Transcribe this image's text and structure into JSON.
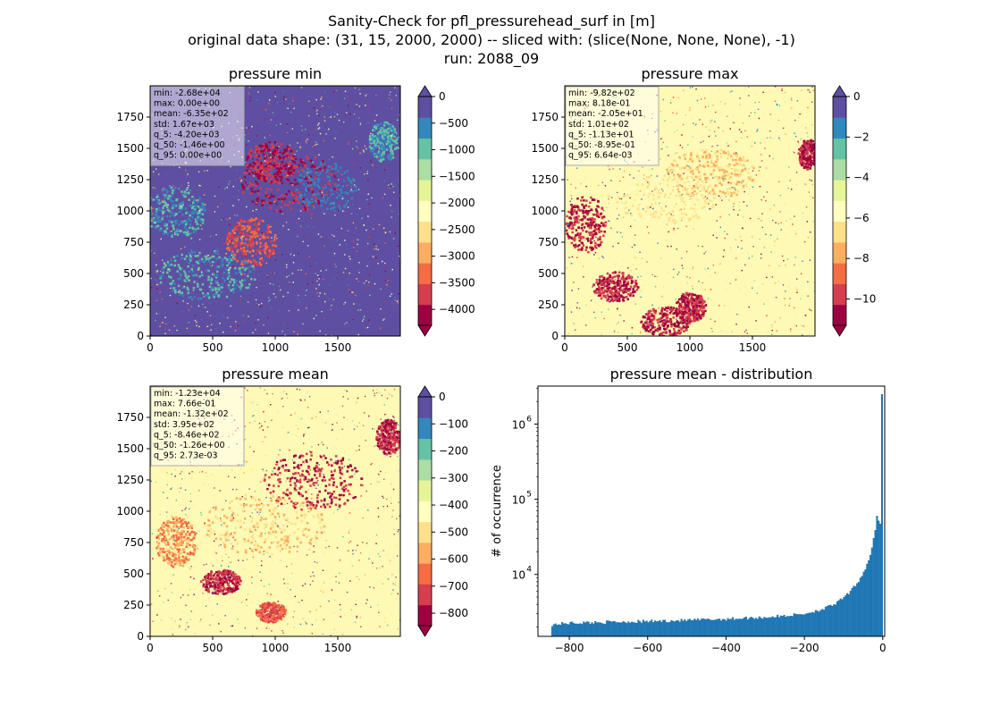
{
  "figure": {
    "title_line1": "Sanity-Check for pfl_pressurehead_surf in [m]",
    "title_line2": "original data shape: (31, 15, 2000, 2000) -- sliced with: (slice(None, None, None), -1)",
    "title_line3": "run: 2088_09"
  },
  "colors": {
    "spectral": [
      "#9e0142",
      "#d53e4f",
      "#f46d43",
      "#fdae61",
      "#fee08b",
      "#ffffbf",
      "#e6f598",
      "#abdda4",
      "#66c2a5",
      "#3288bd",
      "#5e4fa2"
    ],
    "histogram_bar": "#1f77b4"
  },
  "chart_data": [
    {
      "type": "heatmap",
      "title": "pressure min",
      "dominant_color": "#5e4fa2",
      "xticks": [
        0,
        500,
        1000,
        1500
      ],
      "yticks": [
        0,
        250,
        500,
        750,
        1000,
        1250,
        1500,
        1750
      ],
      "xlim": [
        0,
        2000
      ],
      "ylim": [
        0,
        2000
      ],
      "colorbar": {
        "range": [
          -4300,
          0
        ],
        "ticks": [
          0,
          -500,
          -1000,
          -1500,
          -2000,
          -2500,
          -3000,
          -3500,
          -4000
        ],
        "extend": "both"
      },
      "stats": [
        "min: -2.68e+04",
        "max: 0.00e+00",
        "mean: -6.35e+02",
        "std: 1.67e+03",
        "q_5: -4.20e+03",
        "q_50: -1.46e+00",
        "q_95: 0.00e+00"
      ]
    },
    {
      "type": "heatmap",
      "title": "pressure max",
      "dominant_color": "#fef9b4",
      "xticks": [
        0,
        500,
        1000,
        1500
      ],
      "yticks": [
        0,
        250,
        500,
        750,
        1000,
        1250,
        1500,
        1750
      ],
      "xlim": [
        0,
        2000
      ],
      "ylim": [
        0,
        2000
      ],
      "colorbar": {
        "range": [
          -11.3,
          0
        ],
        "ticks": [
          0,
          -2,
          -4,
          -6,
          -8,
          -10
        ],
        "extend": "both"
      },
      "stats": [
        "min: -9.82e+02",
        "max: 8.18e-01",
        "mean: -2.05e+01",
        "std: 1.01e+02",
        "q_5: -1.13e+01",
        "q_50: -8.95e-01",
        "q_95: 6.64e-03"
      ]
    },
    {
      "type": "heatmap",
      "title": "pressure mean",
      "dominant_color": "#fef9b4",
      "xticks": [
        0,
        500,
        1000,
        1500
      ],
      "yticks": [
        0,
        250,
        500,
        750,
        1000,
        1250,
        1500,
        1750
      ],
      "xlim": [
        0,
        2000
      ],
      "ylim": [
        0,
        2000
      ],
      "colorbar": {
        "range": [
          -846,
          0
        ],
        "ticks": [
          0,
          -100,
          -200,
          -300,
          -400,
          -500,
          -600,
          -700,
          -800
        ],
        "extend": "both"
      },
      "stats": [
        "min: -1.23e+04",
        "max: 7.66e-01",
        "mean: -1.32e+02",
        "std: 3.95e+02",
        "q_5: -8.46e+02",
        "q_50: -1.26e+00",
        "q_95: 2.73e-03"
      ]
    },
    {
      "type": "bar",
      "title": "pressure mean - distribution",
      "ylabel": "# of occurrence",
      "xlabel": "",
      "yscale": "log",
      "xlim": [
        -880,
        5
      ],
      "ylim": [
        1500,
        3200000
      ],
      "xticks": [
        -800,
        -600,
        -400,
        -200,
        0
      ],
      "yticks": [
        10000,
        100000,
        1000000
      ],
      "ytick_labels": [
        [
          "10",
          "4"
        ],
        [
          "10",
          "5"
        ],
        [
          "10",
          "6"
        ]
      ],
      "bin_width": 4.23,
      "bins_start": -846,
      "shape_points": [
        [
          -846,
          2150
        ],
        [
          -800,
          2260
        ],
        [
          -700,
          2330
        ],
        [
          -600,
          2380
        ],
        [
          -500,
          2460
        ],
        [
          -400,
          2560
        ],
        [
          -300,
          2700
        ],
        [
          -250,
          2820
        ],
        [
          -200,
          3000
        ],
        [
          -150,
          3500
        ],
        [
          -120,
          4100
        ],
        [
          -100,
          4900
        ],
        [
          -80,
          6100
        ],
        [
          -60,
          8500
        ],
        [
          -50,
          10500
        ],
        [
          -40,
          13500
        ],
        [
          -30,
          20000
        ],
        [
          -20,
          36000
        ],
        [
          -14,
          62000
        ],
        [
          -10,
          50000
        ],
        [
          -7,
          40000
        ],
        [
          -4,
          88000
        ],
        [
          -2,
          2500000
        ],
        [
          0,
          30000
        ]
      ]
    }
  ]
}
